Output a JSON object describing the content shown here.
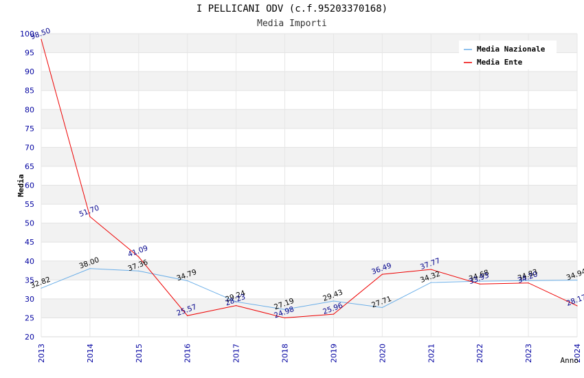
{
  "chart_data": {
    "type": "line",
    "title": "I PELLICANI ODV (c.f.95203370168)",
    "subtitle": "Media Importi",
    "xlabel": "Anno",
    "ylabel": "Media",
    "ylim": [
      20,
      100
    ],
    "yticks": [
      20,
      25,
      30,
      35,
      40,
      45,
      50,
      55,
      60,
      65,
      70,
      75,
      80,
      85,
      90,
      95,
      100
    ],
    "categories": [
      "2013",
      "2014",
      "2015",
      "2016",
      "2017",
      "2018",
      "2019",
      "2020",
      "2021",
      "2022",
      "2023",
      "2024"
    ],
    "grid": true,
    "legend_position": "top-right",
    "series": [
      {
        "name": "Media Nazionale",
        "color": "#6aaee8",
        "label_color": "#000000",
        "values": [
          32.82,
          38.0,
          37.36,
          34.79,
          29.24,
          27.19,
          29.43,
          27.71,
          34.32,
          34.68,
          34.83,
          34.94
        ],
        "labels": [
          "32.82",
          "38.00",
          "37.36",
          "34.79",
          "29.24",
          "27.19",
          "29.43",
          "27.71",
          "34.32",
          "34.68",
          "34.83",
          "34.94"
        ]
      },
      {
        "name": "Media Ente",
        "color": "#ee0000",
        "label_color": "#00008b",
        "values": [
          98.5,
          51.7,
          41.09,
          25.57,
          28.23,
          24.98,
          25.96,
          36.49,
          37.77,
          33.93,
          34.2,
          28.17
        ],
        "labels": [
          "98.50",
          "51.70",
          "41.09",
          "25.57",
          "28.23",
          "24.98",
          "25.96",
          "36.49",
          "37.77",
          "33.93",
          "34.20",
          "28.17"
        ]
      }
    ]
  }
}
